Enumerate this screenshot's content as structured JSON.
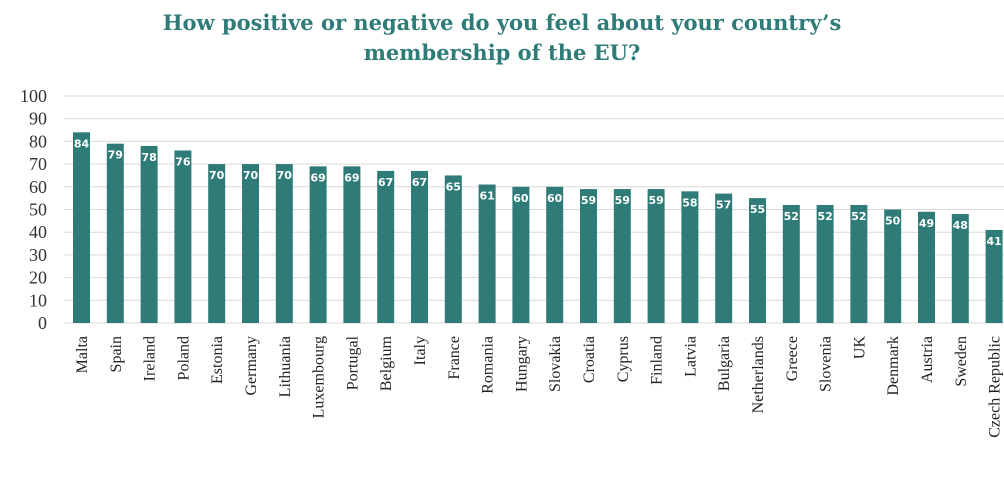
{
  "chart_data": {
    "type": "bar",
    "title_lines": [
      "How positive or negative do you feel about your country’s",
      "membership of the EU?"
    ],
    "xlabel": "",
    "ylabel": "",
    "ylim": [
      0,
      100
    ],
    "yticks": [
      0,
      10,
      20,
      30,
      40,
      50,
      60,
      70,
      80,
      90,
      100
    ],
    "grid": true,
    "legend": "none",
    "bar_color": "#2e7b78",
    "title_color": "#2e7b78",
    "categories": [
      "Malta",
      "Spain",
      "Ireland",
      "Poland",
      "Estonia",
      "Germany",
      "Lithuania",
      "Luxembourg",
      "Portugal",
      "Belgium",
      "Italy",
      "France",
      "Romania",
      "Hungary",
      "Slovakia",
      "Croatia",
      "Cyprus",
      "Finland",
      "Latvia",
      "Bulgaria",
      "Netherlands",
      "Greece",
      "Slovenia",
      "UK",
      "Denmark",
      "Austria",
      "Sweden",
      "Czech Republic"
    ],
    "values": [
      84,
      79,
      78,
      76,
      70,
      70,
      70,
      69,
      69,
      67,
      67,
      65,
      61,
      60,
      60,
      59,
      59,
      59,
      58,
      57,
      55,
      52,
      52,
      52,
      50,
      49,
      48,
      41
    ]
  }
}
